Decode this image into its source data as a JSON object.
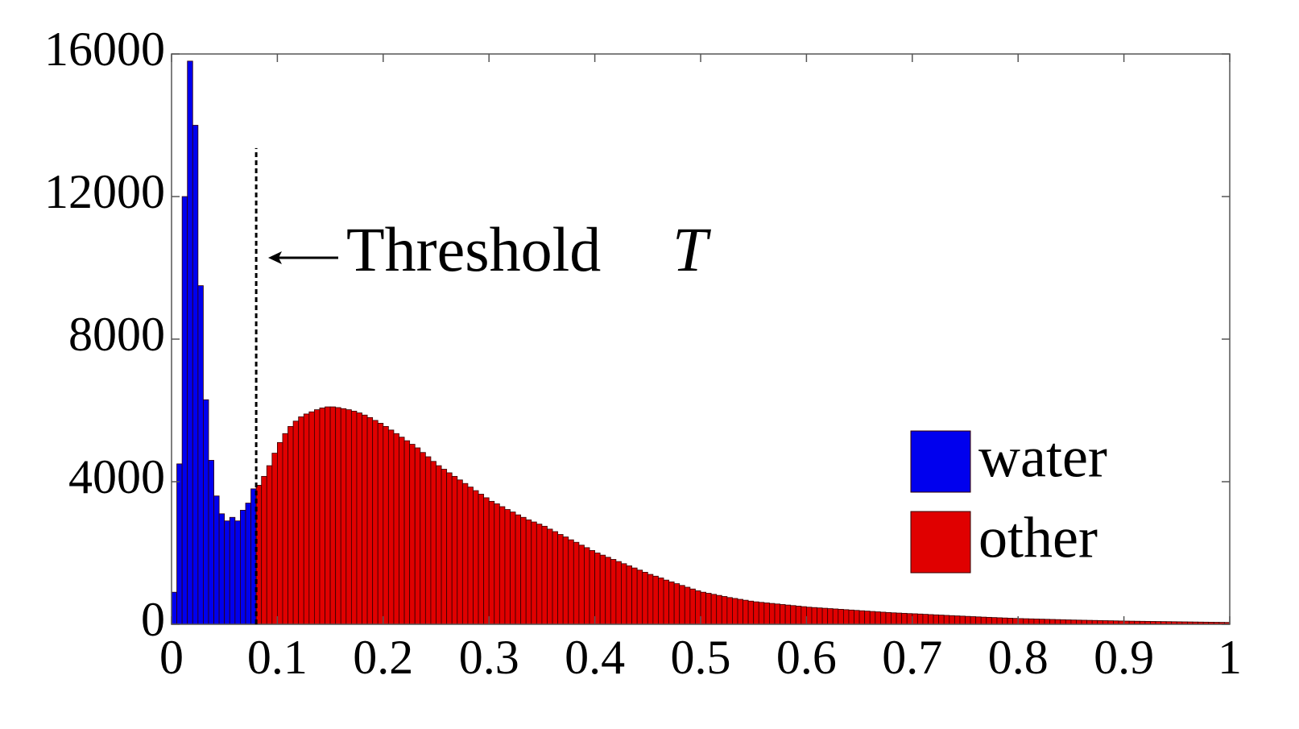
{
  "chart_data": {
    "type": "histogram",
    "xlim": [
      0,
      1
    ],
    "xticks": [
      0,
      0.1,
      0.2,
      0.3,
      0.4,
      0.5,
      0.6,
      0.7,
      0.8,
      0.9,
      1
    ],
    "ylim": [
      0,
      16000
    ],
    "yticks": [
      0,
      4000,
      8000,
      12000,
      16000
    ],
    "legend": "lower right",
    "annotation": {
      "text": "Threshold",
      "symbol": "T",
      "x": 0.08
    },
    "series": [
      {
        "name": "water",
        "color": "#0000ee",
        "bins": [
          0,
          0.005,
          0.01,
          0.015,
          0.02,
          0.025,
          0.03,
          0.035,
          0.04,
          0.045,
          0.05,
          0.055,
          0.06,
          0.065,
          0.07,
          0.075,
          0.08
        ],
        "values": [
          900,
          4500,
          12000,
          15800,
          14000,
          9500,
          6300,
          4600,
          3600,
          3100,
          2900,
          3000,
          2900,
          3200,
          3400,
          3800
        ]
      },
      {
        "name": "other",
        "color": "#e00000",
        "bins": [
          0.08,
          0.085,
          0.09,
          0.095,
          0.1,
          0.105,
          0.11,
          0.115,
          0.12,
          0.125,
          0.13,
          0.135,
          0.14,
          0.145,
          0.15,
          0.155,
          0.16,
          0.165,
          0.17,
          0.175,
          0.18,
          0.185,
          0.19,
          0.195,
          0.2,
          0.205,
          0.21,
          0.215,
          0.22,
          0.225,
          0.23,
          0.235,
          0.24,
          0.245,
          0.25,
          0.255,
          0.26,
          0.265,
          0.27,
          0.275,
          0.28,
          0.285,
          0.29,
          0.295,
          0.3,
          0.305,
          0.31,
          0.315,
          0.32,
          0.325,
          0.33,
          0.335,
          0.34,
          0.345,
          0.35,
          0.355,
          0.36,
          0.365,
          0.37,
          0.375,
          0.38,
          0.385,
          0.39,
          0.395,
          0.4,
          0.405,
          0.41,
          0.415,
          0.42,
          0.425,
          0.43,
          0.435,
          0.44,
          0.445,
          0.45,
          0.455,
          0.46,
          0.465,
          0.47,
          0.475,
          0.48,
          0.485,
          0.49,
          0.495,
          0.5,
          0.505,
          0.51,
          0.515,
          0.52,
          0.525,
          0.53,
          0.535,
          0.54,
          0.545,
          0.55,
          0.555,
          0.56,
          0.565,
          0.57,
          0.575,
          0.58,
          0.585,
          0.59,
          0.595,
          0.6,
          0.605,
          0.61,
          0.615,
          0.62,
          0.625,
          0.63,
          0.635,
          0.64,
          0.645,
          0.65,
          0.655,
          0.66,
          0.665,
          0.67,
          0.675,
          0.68,
          0.685,
          0.69,
          0.695,
          0.7,
          0.705,
          0.71,
          0.715,
          0.72,
          0.725,
          0.73,
          0.735,
          0.74,
          0.745,
          0.75,
          0.755,
          0.76,
          0.765,
          0.77,
          0.775,
          0.78,
          0.785,
          0.79,
          0.795,
          0.8,
          0.805,
          0.81,
          0.815,
          0.82,
          0.825,
          0.83,
          0.835,
          0.84,
          0.845,
          0.85,
          0.855,
          0.86,
          0.865,
          0.87,
          0.875,
          0.88,
          0.885,
          0.89,
          0.895,
          0.9,
          0.905,
          0.91,
          0.915,
          0.92,
          0.925,
          0.93,
          0.935,
          0.94,
          0.945,
          0.95,
          0.955,
          0.96,
          0.965,
          0.97,
          0.975,
          0.98,
          0.985,
          0.99,
          0.995,
          1
        ],
        "values": [
          3900,
          4150,
          4450,
          4800,
          5100,
          5350,
          5550,
          5700,
          5820,
          5900,
          5960,
          6020,
          6070,
          6100,
          6100,
          6080,
          6050,
          6020,
          5980,
          5930,
          5870,
          5800,
          5720,
          5640,
          5550,
          5450,
          5350,
          5250,
          5150,
          5050,
          4950,
          4820,
          4700,
          4570,
          4450,
          4350,
          4250,
          4150,
          4050,
          3950,
          3850,
          3750,
          3650,
          3550,
          3450,
          3380,
          3300,
          3220,
          3150,
          3070,
          3000,
          2930,
          2870,
          2810,
          2750,
          2670,
          2600,
          2520,
          2450,
          2370,
          2300,
          2220,
          2150,
          2070,
          2000,
          1940,
          1880,
          1820,
          1760,
          1700,
          1640,
          1580,
          1520,
          1460,
          1400,
          1350,
          1300,
          1240,
          1190,
          1140,
          1090,
          1040,
          990,
          940,
          900,
          870,
          840,
          810,
          780,
          750,
          725,
          700,
          675,
          650,
          630,
          615,
          600,
          585,
          570,
          555,
          540,
          525,
          510,
          495,
          480,
          470,
          460,
          450,
          440,
          430,
          420,
          410,
          400,
          390,
          380,
          370,
          360,
          350,
          340,
          330,
          322,
          315,
          308,
          300,
          295,
          288,
          280,
          272,
          265,
          258,
          250,
          243,
          236,
          229,
          222,
          215,
          208,
          201,
          195,
          189,
          183,
          177,
          171,
          165,
          160,
          156,
          152,
          148,
          144,
          140,
          136,
          132,
          128,
          124,
          120,
          117,
          114,
          111,
          108,
          105,
          102,
          99,
          96,
          93,
          90,
          88,
          86,
          84,
          82,
          80,
          78,
          76,
          74,
          72,
          70,
          68,
          66,
          64,
          62,
          60,
          58,
          56,
          54,
          52
        ]
      }
    ]
  }
}
